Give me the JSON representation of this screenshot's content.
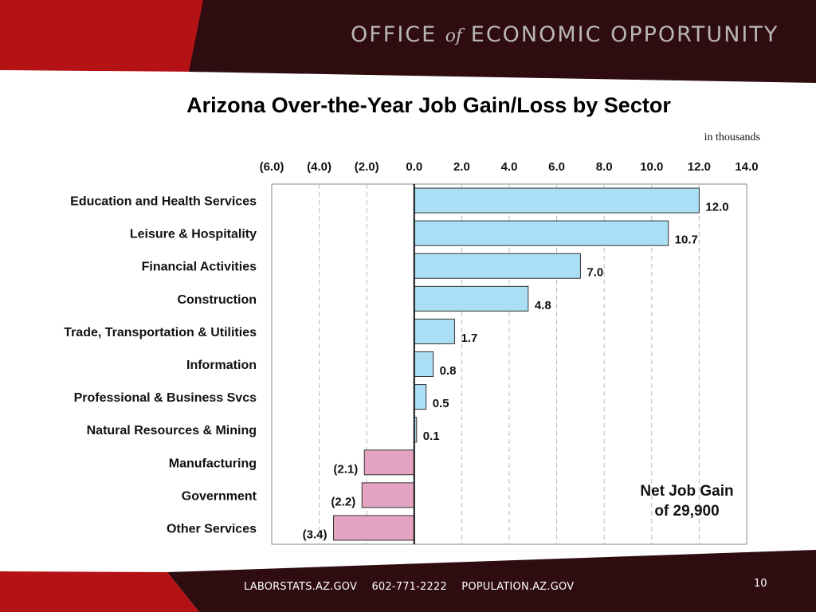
{
  "header": {
    "org_part1": "OFFICE",
    "org_of": "of",
    "org_part2": "ECONOMIC OPPORTUNITY",
    "colors": {
      "red": "#b51216",
      "maroon": "#2e0c10"
    }
  },
  "units_note": "in thousands",
  "callout": {
    "line1": "Net Job Gain",
    "line2": "of 29,900"
  },
  "footer": {
    "link1": "LABORSTATS.AZ.GOV",
    "phone": "602-771-2222",
    "link2": "POPULATION.AZ.GOV",
    "page_number": "10"
  },
  "chart_data": {
    "type": "bar",
    "orientation": "horizontal",
    "title": "Arizona Over-the-Year Job Gain/Loss by Sector",
    "categories": [
      "Education and Health Services",
      "Leisure & Hospitality",
      "Financial Activities",
      "Construction",
      "Trade, Transportation & Utilities",
      "Information",
      "Professional & Business Svcs",
      "Natural Resources & Mining",
      "Manufacturing",
      "Government",
      "Other Services"
    ],
    "values": [
      12.0,
      10.7,
      7.0,
      4.8,
      1.7,
      0.8,
      0.5,
      0.1,
      -2.1,
      -2.2,
      -3.4
    ],
    "data_labels": [
      "12.0",
      "10.7",
      "7.0",
      "4.8",
      "1.7",
      "0.8",
      "0.5",
      "0.1",
      "(2.1)",
      "(2.2)",
      "(3.4)"
    ],
    "xlim": [
      -6,
      14
    ],
    "x_ticks": [
      -6,
      -4,
      -2,
      0,
      2,
      4,
      6,
      8,
      10,
      12,
      14
    ],
    "x_tick_labels": [
      "(6.0)",
      "(4.0)",
      "(2.0)",
      "0.0",
      "2.0",
      "4.0",
      "6.0",
      "8.0",
      "10.0",
      "12.0",
      "14.0"
    ],
    "x_axis_position": "top",
    "grid": true,
    "colors": {
      "positive": "#abdff5",
      "negative": "#e2a4c1"
    }
  }
}
